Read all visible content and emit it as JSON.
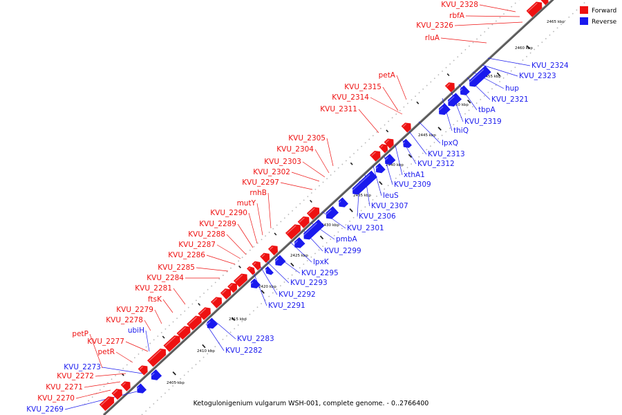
{
  "legend": [
    {
      "label": "Forward",
      "color": "#ee1111"
    },
    {
      "label": "Reverse",
      "color": "#1a1aee"
    }
  ],
  "caption": "Ketogulonigenium vulgarum WSH-001, complete genome. - 0..2766400",
  "ticks": [
    "2405 kbp",
    "2410 kbp",
    "2415 kbp",
    "2420 kbp",
    "2425 kbp",
    "2430 kbp",
    "2435 kbp",
    "2440 kbp",
    "2445 kbp",
    "2450 kbp",
    "2455 kbp",
    "2460 kbp",
    "2465 kbp"
  ],
  "forward_genes": [
    "KVU_2328",
    "rbfA",
    "KVU_2326",
    "rluA",
    "petA",
    "KVU_2315",
    "KVU_2314",
    "KVU_2311",
    "KVU_2305",
    "KVU_2304",
    "KVU_2303",
    "KVU_2302",
    "KVU_2297",
    "rnhB",
    "mutY",
    "KVU_2290",
    "KVU_2289",
    "KVU_2288",
    "KVU_2287",
    "KVU_2286",
    "KVU_2285",
    "KVU_2284",
    "KVU_2281",
    "ftsK",
    "KVU_2279",
    "KVU_2278",
    "petP",
    "KVU_2277",
    "petR",
    "KVU_2272",
    "KVU_2271",
    "KVU_2270"
  ],
  "reverse_genes": [
    "KVU_2324",
    "KVU_2323",
    "hup",
    "KVU_2321",
    "tbpA",
    "KVU_2319",
    "thiQ",
    "lpxQ",
    "KVU_2313",
    "KVU_2312",
    "xthA1",
    "KVU_2309",
    "leuS",
    "KVU_2307",
    "KVU_2306",
    "KVU_2301",
    "pmbA",
    "KVU_2299",
    "lpxK",
    "KVU_2295",
    "KVU_2293",
    "KVU_2292",
    "KVU_2291",
    "KVU_2283",
    "KVU_2282",
    "ubiH",
    "KVU_2273",
    "KVU_2269"
  ]
}
